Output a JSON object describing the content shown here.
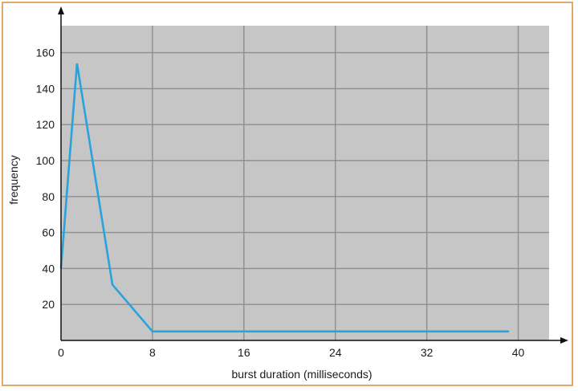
{
  "chart_data": {
    "type": "line",
    "title": "",
    "xlabel": "burst duration (milliseconds)",
    "ylabel": "frequency",
    "xlim": [
      0,
      42.7
    ],
    "ylim": [
      0,
      175
    ],
    "x_ticks": [
      0,
      8,
      16,
      24,
      32,
      40
    ],
    "y_ticks": [
      20,
      40,
      60,
      80,
      100,
      120,
      140,
      160
    ],
    "grid": true,
    "grid_x": [
      8,
      16,
      24,
      32,
      40
    ],
    "grid_y": [
      20,
      40,
      60,
      80,
      100,
      120,
      140,
      160
    ],
    "series": [
      {
        "x": [
          0,
          1.4,
          4.5,
          8,
          39.2
        ],
        "y": [
          40,
          154,
          31,
          5,
          5
        ],
        "color": "#29a3dc"
      }
    ],
    "colors": {
      "plot_background": "#c6c6c6",
      "grid": "#8e8e8e",
      "line": "#29a3dc",
      "frame_border": "#e0a96a"
    }
  }
}
